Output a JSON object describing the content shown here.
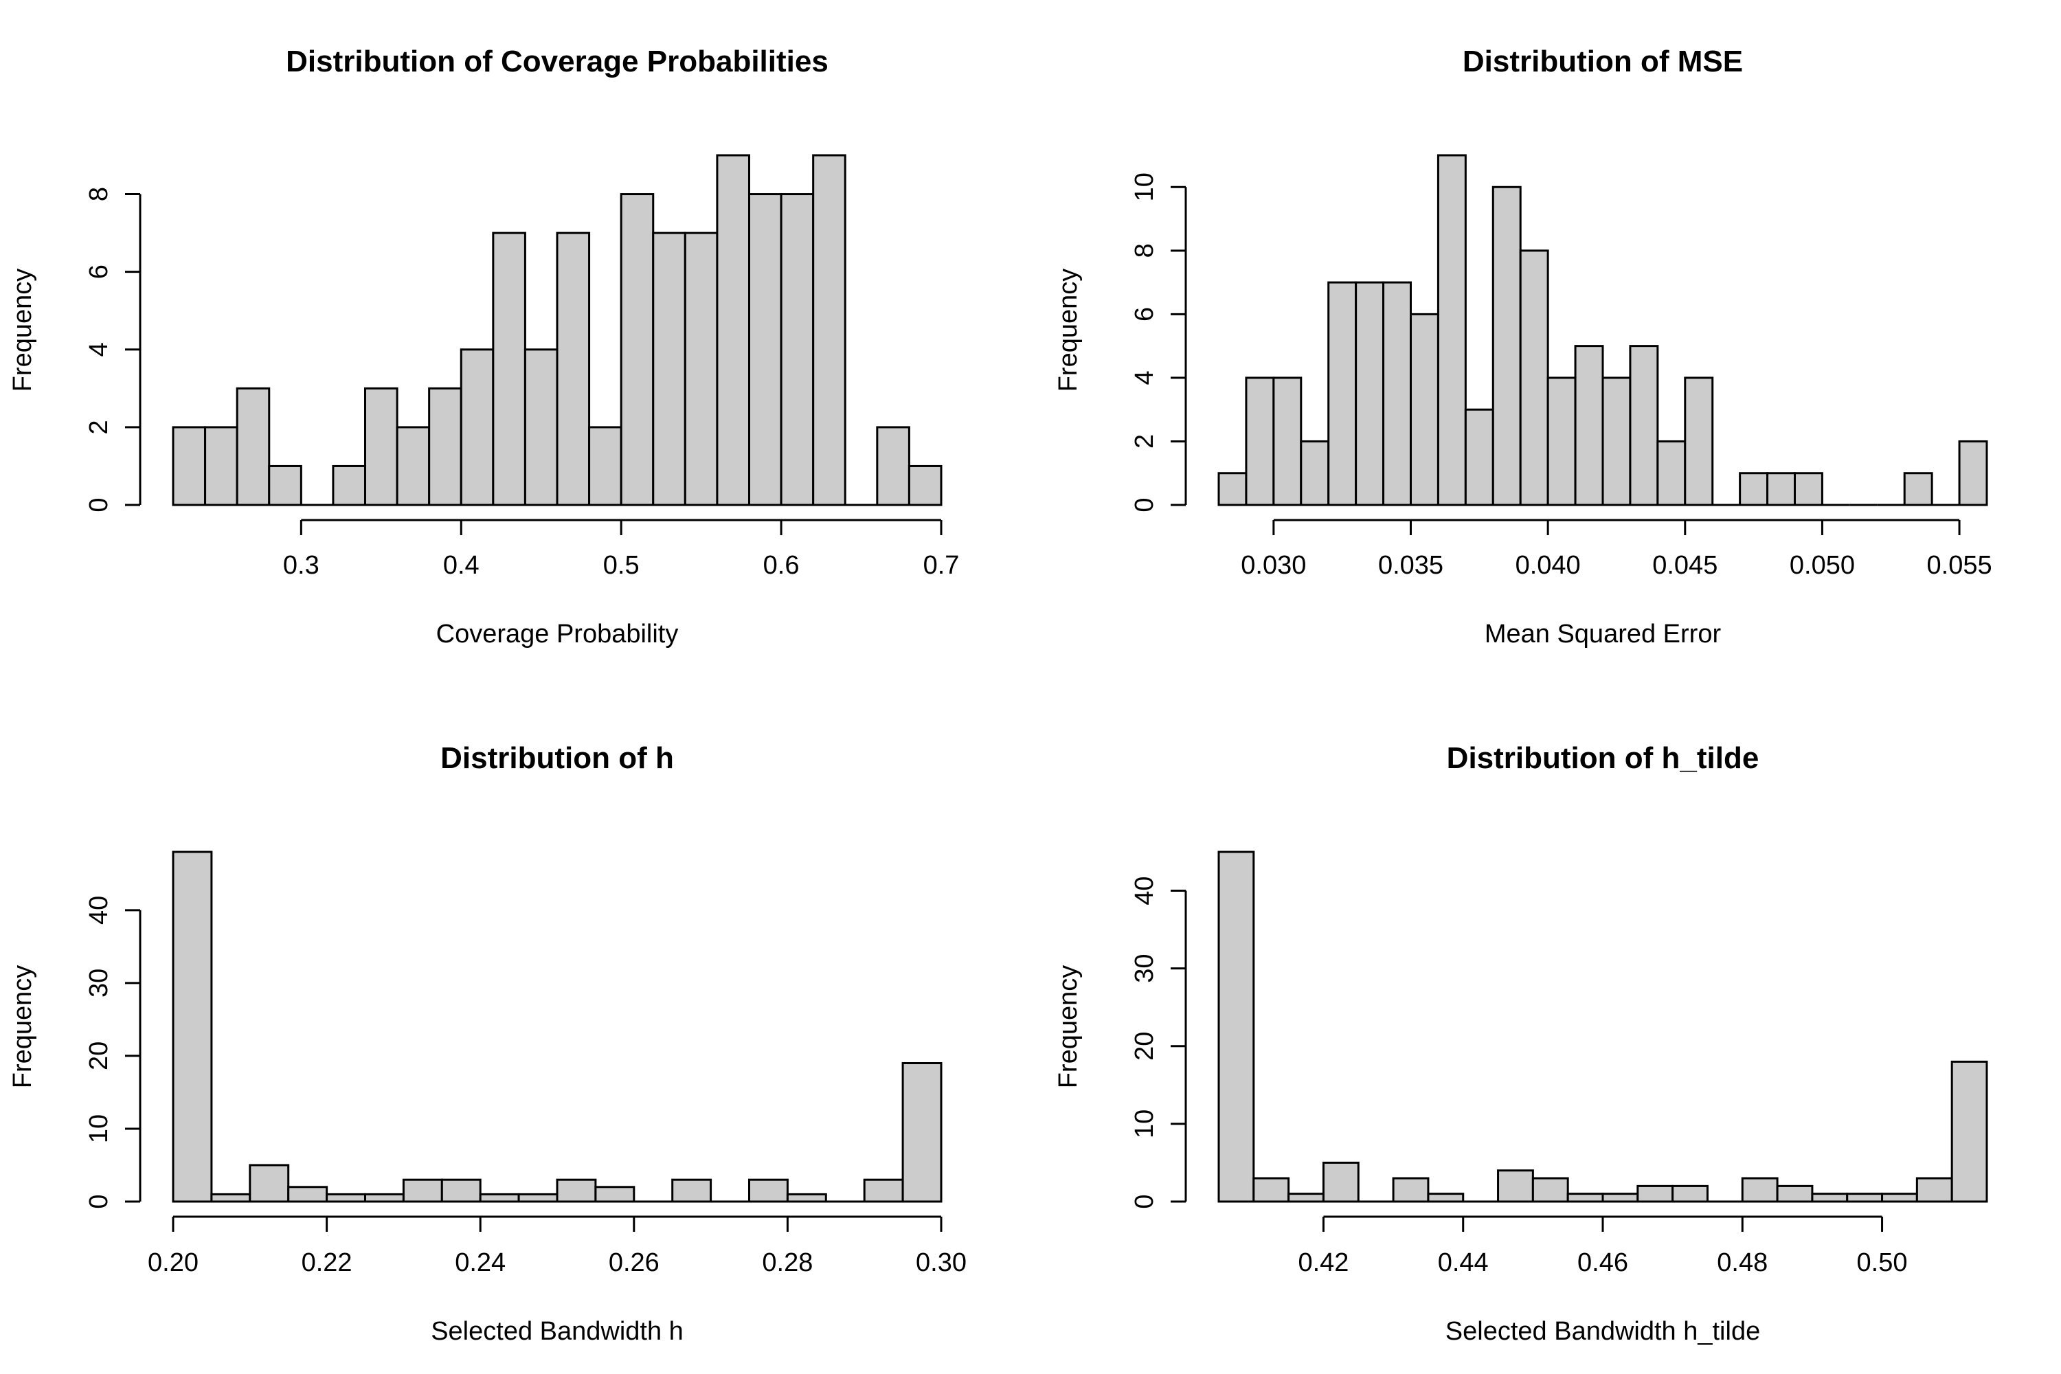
{
  "colors": {
    "bar_fill": "#cccccc",
    "bar_stroke": "#000000",
    "background": "#ffffff"
  },
  "chart_data": [
    {
      "type": "bar",
      "title": "Distribution of Coverage Probabilities",
      "xlabel": "Coverage Probability",
      "ylabel": "Frequency",
      "bin_start": 0.22,
      "bin_width": 0.02,
      "values": [
        2,
        2,
        3,
        1,
        0,
        1,
        3,
        2,
        3,
        4,
        7,
        4,
        7,
        2,
        8,
        7,
        7,
        9,
        8,
        8,
        9,
        0,
        2,
        1
      ],
      "xlim": [
        0.22,
        0.7
      ],
      "ylim": [
        0,
        9
      ],
      "xticks": [
        0.3,
        0.4,
        0.5,
        0.6,
        0.7
      ],
      "xtick_labels": [
        "0.3",
        "0.4",
        "0.5",
        "0.6",
        "0.7"
      ],
      "yticks": [
        0,
        2,
        4,
        6,
        8
      ],
      "ytick_labels": [
        "0",
        "2",
        "4",
        "6",
        "8"
      ],
      "grid": false
    },
    {
      "type": "bar",
      "title": "Distribution of MSE",
      "xlabel": "Mean Squared Error",
      "ylabel": "Frequency",
      "bin_start": 0.028,
      "bin_width": 0.001,
      "values": [
        1,
        4,
        4,
        2,
        7,
        7,
        7,
        6,
        11,
        3,
        10,
        8,
        4,
        5,
        4,
        5,
        2,
        4,
        0,
        1,
        1,
        1,
        0,
        0,
        0,
        1,
        0,
        2
      ],
      "xlim": [
        0.028,
        0.056
      ],
      "ylim": [
        0,
        11
      ],
      "xticks": [
        0.03,
        0.035,
        0.04,
        0.045,
        0.05,
        0.055
      ],
      "xtick_labels": [
        "0.030",
        "0.035",
        "0.040",
        "0.045",
        "0.050",
        "0.055"
      ],
      "yticks": [
        0,
        2,
        4,
        6,
        8,
        10
      ],
      "ytick_labels": [
        "0",
        "2",
        "4",
        "6",
        "8",
        "10"
      ],
      "grid": false
    },
    {
      "type": "bar",
      "title": "Distribution of h",
      "xlabel": "Selected Bandwidth h",
      "ylabel": "Frequency",
      "bin_start": 0.2,
      "bin_width": 0.005,
      "values": [
        48,
        1,
        5,
        2,
        1,
        1,
        3,
        3,
        1,
        1,
        3,
        2,
        0,
        3,
        0,
        3,
        1,
        0,
        3,
        19
      ],
      "xlim": [
        0.2,
        0.3
      ],
      "ylim": [
        0,
        48
      ],
      "xticks": [
        0.2,
        0.22,
        0.24,
        0.26,
        0.28,
        0.3
      ],
      "xtick_labels": [
        "0.20",
        "0.22",
        "0.24",
        "0.26",
        "0.28",
        "0.30"
      ],
      "yticks": [
        0,
        10,
        20,
        30,
        40
      ],
      "ytick_labels": [
        "0",
        "10",
        "20",
        "30",
        "40"
      ],
      "grid": false
    },
    {
      "type": "bar",
      "title": "Distribution of h_tilde",
      "xlabel": "Selected Bandwidth h_tilde",
      "ylabel": "Frequency",
      "bin_start": 0.405,
      "bin_width": 0.005,
      "values": [
        45,
        3,
        1,
        5,
        0,
        3,
        1,
        0,
        4,
        3,
        1,
        1,
        2,
        2,
        0,
        3,
        2,
        1,
        1,
        1,
        3,
        18
      ],
      "xlim": [
        0.405,
        0.515
      ],
      "ylim": [
        0,
        45
      ],
      "xticks": [
        0.42,
        0.44,
        0.46,
        0.48,
        0.5
      ],
      "xtick_labels": [
        "0.42",
        "0.44",
        "0.46",
        "0.48",
        "0.50"
      ],
      "yticks": [
        0,
        10,
        20,
        30,
        40
      ],
      "ytick_labels": [
        "0",
        "10",
        "20",
        "30",
        "40"
      ],
      "grid": false
    }
  ]
}
